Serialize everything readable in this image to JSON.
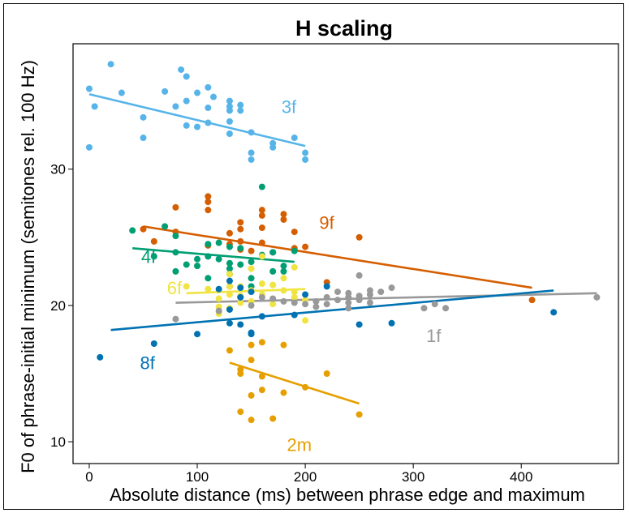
{
  "chart_data": {
    "type": "scatter",
    "title": "H scaling",
    "xlabel": "Absolute distance (ms) between phrase edge and maximum",
    "ylabel": "F0 of phrase-initial minimum (semitones rel. 100 Hz)",
    "xlim": [
      -15,
      490
    ],
    "ylim": [
      8.4,
      39.2
    ],
    "xticks": [
      0,
      100,
      200,
      300,
      400
    ],
    "yticks": [
      10,
      20,
      30
    ],
    "grid": false,
    "legend": "none (series labelled directly on plot)",
    "series": [
      {
        "name": "3f",
        "color": "#56B4E9",
        "points": [
          [
            0,
            35.9
          ],
          [
            0,
            31.6
          ],
          [
            5,
            34.6
          ],
          [
            20,
            37.7
          ],
          [
            30,
            35.6
          ],
          [
            50,
            33.8
          ],
          [
            50,
            32.3
          ],
          [
            70,
            35.7
          ],
          [
            80,
            34.6
          ],
          [
            85,
            37.3
          ],
          [
            90,
            36.8
          ],
          [
            90,
            35.0
          ],
          [
            90,
            33.2
          ],
          [
            100,
            35.6
          ],
          [
            100,
            33.1
          ],
          [
            110,
            36.0
          ],
          [
            110,
            34.5
          ],
          [
            110,
            33.4
          ],
          [
            115,
            35.3
          ],
          [
            130,
            35.0
          ],
          [
            130,
            34.6
          ],
          [
            130,
            34.3
          ],
          [
            130,
            33.5
          ],
          [
            130,
            32.6
          ],
          [
            140,
            34.7
          ],
          [
            140,
            34.3
          ],
          [
            150,
            32.7
          ],
          [
            150,
            31.2
          ],
          [
            150,
            30.7
          ],
          [
            170,
            31.9
          ],
          [
            170,
            31.6
          ],
          [
            190,
            32.3
          ],
          [
            200,
            31.2
          ],
          [
            200,
            30.7
          ]
        ],
        "fit": [
          [
            0,
            35.5
          ],
          [
            200,
            31.7
          ]
        ]
      },
      {
        "name": "9f",
        "color": "#D55E00",
        "points": [
          [
            50,
            25.6
          ],
          [
            60,
            24.7
          ],
          [
            80,
            27.2
          ],
          [
            80,
            25.4
          ],
          [
            110,
            28.0
          ],
          [
            110,
            27.6
          ],
          [
            110,
            27.0
          ],
          [
            110,
            24.4
          ],
          [
            130,
            25.3
          ],
          [
            130,
            24.5
          ],
          [
            130,
            21.4
          ],
          [
            140,
            26.1
          ],
          [
            140,
            25.6
          ],
          [
            140,
            24.7
          ],
          [
            140,
            24.1
          ],
          [
            150,
            24.0
          ],
          [
            160,
            27.0
          ],
          [
            160,
            26.6
          ],
          [
            160,
            25.7
          ],
          [
            160,
            24.6
          ],
          [
            170,
            23.9
          ],
          [
            180,
            26.7
          ],
          [
            180,
            26.3
          ],
          [
            190,
            25.4
          ],
          [
            190,
            24.2
          ],
          [
            200,
            24.3
          ],
          [
            220,
            21.7
          ],
          [
            250,
            25.0
          ],
          [
            410,
            20.4
          ]
        ],
        "fit": [
          [
            50,
            25.8
          ],
          [
            410,
            21.3
          ]
        ]
      },
      {
        "name": "4f",
        "color": "#009E73",
        "points": [
          [
            40,
            25.5
          ],
          [
            60,
            23.6
          ],
          [
            70,
            25.8
          ],
          [
            80,
            25.1
          ],
          [
            80,
            23.9
          ],
          [
            80,
            22.5
          ],
          [
            90,
            23.0
          ],
          [
            100,
            23.4
          ],
          [
            100,
            22.9
          ],
          [
            110,
            24.5
          ],
          [
            110,
            23.6
          ],
          [
            110,
            22.0
          ],
          [
            120,
            24.6
          ],
          [
            120,
            23.4
          ],
          [
            130,
            24.3
          ],
          [
            130,
            23.1
          ],
          [
            130,
            22.7
          ],
          [
            130,
            22.3
          ],
          [
            140,
            24.2
          ],
          [
            140,
            23.0
          ],
          [
            150,
            23.2
          ],
          [
            150,
            22.0
          ],
          [
            150,
            21.4
          ],
          [
            160,
            28.7
          ],
          [
            160,
            23.7
          ],
          [
            170,
            23.9
          ],
          [
            170,
            22.5
          ],
          [
            180,
            22.9
          ],
          [
            180,
            22.5
          ],
          [
            190,
            24.0
          ]
        ],
        "fit": [
          [
            40,
            24.2
          ],
          [
            190,
            23.2
          ]
        ]
      },
      {
        "name": "6f",
        "color": "#F0E442",
        "points": [
          [
            90,
            21.4
          ],
          [
            110,
            21.2
          ],
          [
            120,
            20.5
          ],
          [
            120,
            19.9
          ],
          [
            120,
            19.4
          ],
          [
            130,
            22.3
          ],
          [
            130,
            21.4
          ],
          [
            130,
            20.8
          ],
          [
            130,
            19.8
          ],
          [
            140,
            21.4
          ],
          [
            140,
            20.7
          ],
          [
            140,
            20.2
          ],
          [
            150,
            22.7
          ],
          [
            150,
            21.1
          ],
          [
            150,
            20.3
          ],
          [
            160,
            23.6
          ],
          [
            160,
            21.6
          ],
          [
            160,
            20.8
          ],
          [
            170,
            21.5
          ],
          [
            170,
            20.1
          ],
          [
            180,
            22.0
          ],
          [
            180,
            21.1
          ],
          [
            190,
            22.8
          ],
          [
            190,
            21.0
          ],
          [
            190,
            20.6
          ],
          [
            200,
            20.4
          ],
          [
            200,
            18.9
          ]
        ],
        "fit": [
          [
            90,
            20.9
          ],
          [
            200,
            21.2
          ]
        ]
      },
      {
        "name": "1f",
        "color": "#999999",
        "points": [
          [
            80,
            19.0
          ],
          [
            120,
            19.6
          ],
          [
            140,
            20.6
          ],
          [
            150,
            20.0
          ],
          [
            160,
            20.6
          ],
          [
            170,
            20.5
          ],
          [
            180,
            20.3
          ],
          [
            190,
            20.2
          ],
          [
            200,
            20.1
          ],
          [
            210,
            20.3
          ],
          [
            210,
            19.9
          ],
          [
            220,
            20.6
          ],
          [
            220,
            20.1
          ],
          [
            230,
            21.0
          ],
          [
            230,
            20.4
          ],
          [
            240,
            20.9
          ],
          [
            240,
            20.6
          ],
          [
            240,
            20.2
          ],
          [
            240,
            19.8
          ],
          [
            250,
            22.2
          ],
          [
            250,
            20.7
          ],
          [
            250,
            20.4
          ],
          [
            260,
            21.1
          ],
          [
            260,
            20.8
          ],
          [
            260,
            20.2
          ],
          [
            270,
            21.0
          ],
          [
            280,
            21.3
          ],
          [
            310,
            19.8
          ],
          [
            320,
            20.1
          ],
          [
            330,
            19.8
          ],
          [
            470,
            20.6
          ]
        ],
        "fit": [
          [
            80,
            20.2
          ],
          [
            470,
            20.9
          ]
        ]
      },
      {
        "name": "8f",
        "color": "#0072B2",
        "points": [
          [
            10,
            16.2
          ],
          [
            60,
            17.2
          ],
          [
            100,
            17.9
          ],
          [
            120,
            21.2
          ],
          [
            130,
            21.8
          ],
          [
            130,
            19.7
          ],
          [
            130,
            18.7
          ],
          [
            140,
            21.3
          ],
          [
            140,
            20.6
          ],
          [
            140,
            18.6
          ],
          [
            150,
            21.0
          ],
          [
            150,
            18.0
          ],
          [
            150,
            17.9
          ],
          [
            160,
            19.2
          ],
          [
            190,
            19.3
          ],
          [
            200,
            20.8
          ],
          [
            220,
            21.4
          ],
          [
            250,
            18.6
          ],
          [
            280,
            18.7
          ],
          [
            430,
            19.5
          ]
        ],
        "fit": [
          [
            20,
            18.2
          ],
          [
            430,
            21.1
          ]
        ]
      },
      {
        "name": "2m",
        "color": "#E69F00",
        "points": [
          [
            130,
            16.7
          ],
          [
            140,
            15.3
          ],
          [
            140,
            15.0
          ],
          [
            140,
            12.2
          ],
          [
            150,
            17.1
          ],
          [
            150,
            16.0
          ],
          [
            150,
            13.4
          ],
          [
            150,
            11.6
          ],
          [
            160,
            17.3
          ],
          [
            160,
            14.8
          ],
          [
            160,
            13.8
          ],
          [
            170,
            11.7
          ],
          [
            180,
            17.1
          ],
          [
            180,
            13.6
          ],
          [
            200,
            14.0
          ],
          [
            220,
            15.0
          ],
          [
            250,
            12.0
          ]
        ],
        "fit": [
          [
            130,
            15.8
          ],
          [
            250,
            12.8
          ]
        ]
      }
    ]
  }
}
